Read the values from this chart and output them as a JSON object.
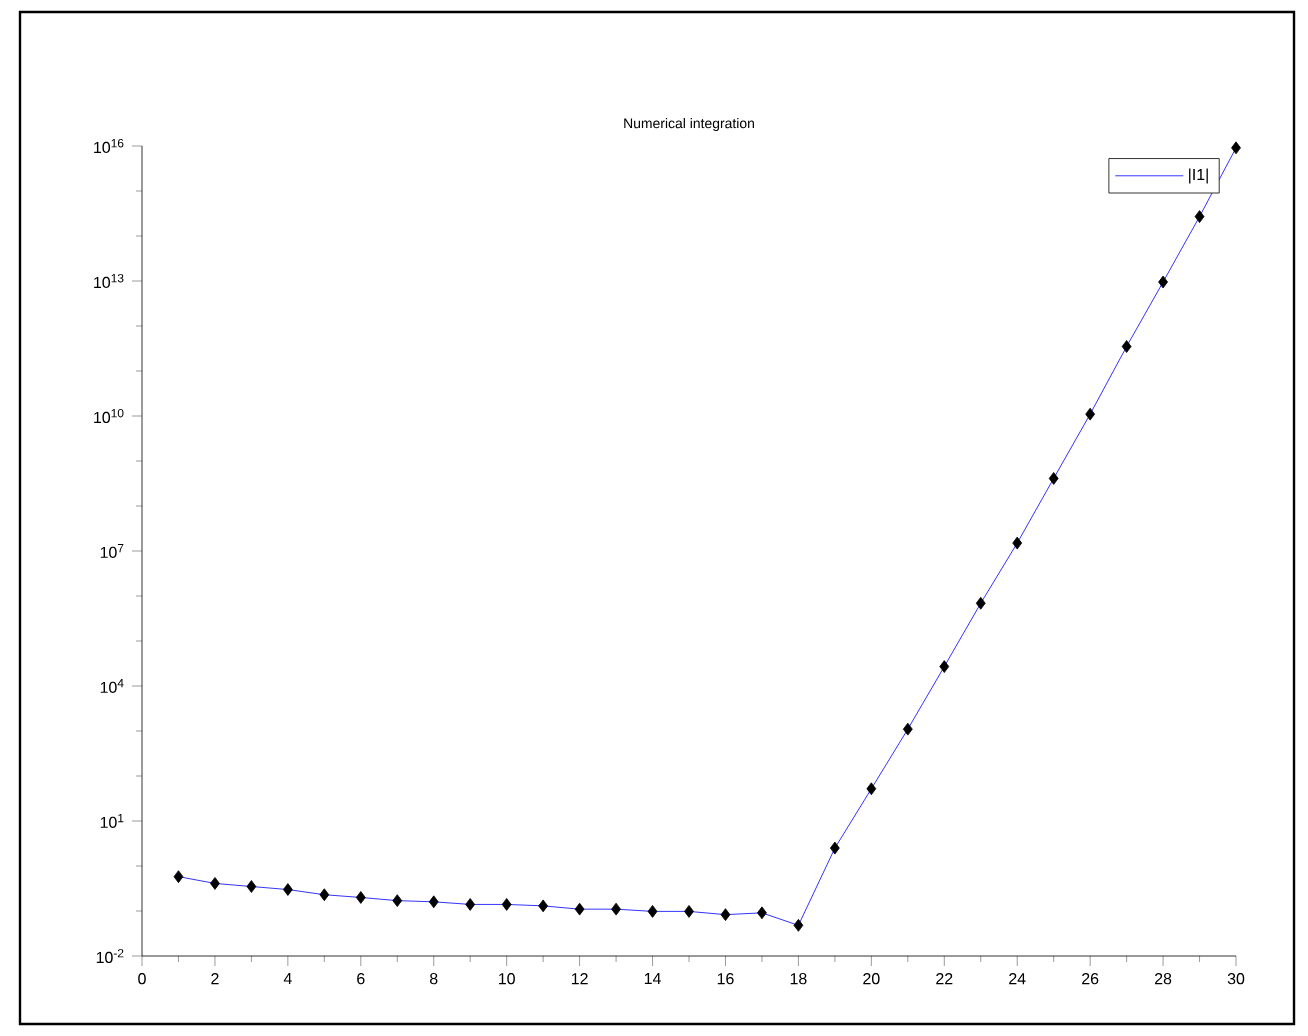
{
  "chart_data": {
    "type": "line",
    "title": "Numerical integration",
    "x": [
      1,
      2,
      3,
      4,
      5,
      6,
      7,
      8,
      9,
      10,
      11,
      12,
      13,
      14,
      15,
      16,
      17,
      18,
      19,
      20,
      21,
      22,
      23,
      24,
      25,
      26,
      27,
      28,
      29,
      30
    ],
    "series": [
      {
        "name": "|I1|",
        "color": "#0000ff",
        "values": [
          0.58,
          0.41,
          0.35,
          0.3,
          0.23,
          0.2,
          0.17,
          0.16,
          0.14,
          0.14,
          0.13,
          0.11,
          0.11,
          0.098,
          0.098,
          0.083,
          0.091,
          0.048,
          2.5,
          52,
          1100.0,
          27000.0,
          690000.0,
          15000000.0,
          410000000.0,
          11000000000.0,
          350000000000.0,
          9500000000000.0,
          270000000000000.0,
          9100000000000000.0
        ]
      }
    ],
    "log": "y",
    "marker": "diamond",
    "legend": "top right",
    "xlim": [
      0,
      30
    ],
    "xticks": [
      0,
      2,
      4,
      6,
      8,
      10,
      12,
      14,
      16,
      18,
      20,
      22,
      24,
      26,
      28,
      30
    ],
    "ylim": [
      0.01,
      1e+16
    ],
    "yticks": [
      {
        "value": 0.01,
        "label": "10$^{-2}$"
      },
      {
        "value": 10,
        "label": "10$^{1}$"
      },
      {
        "value": 10000,
        "label": "10$^{4}$"
      },
      {
        "value": 10000000.0,
        "label": "10$^{7}$"
      },
      {
        "value": 10000000000.0,
        "label": "10$^{10}$"
      },
      {
        "value": 10000000000000.0,
        "label": "10$^{13}$"
      },
      {
        "value": 1e+16,
        "label": "10$^{16}$"
      }
    ]
  }
}
